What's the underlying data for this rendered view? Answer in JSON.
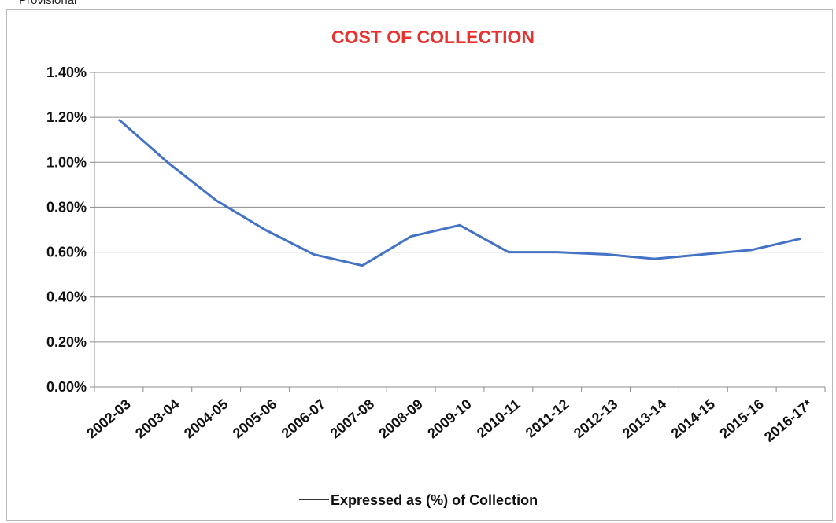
{
  "header_note": "Provisional",
  "chart_data": {
    "type": "line",
    "title": "COST OF COLLECTION",
    "title_color": "#e8322f",
    "xlabel": "",
    "ylabel": "",
    "categories": [
      "2002-03",
      "2003-04",
      "2004-05",
      "2005-06",
      "2006-07",
      "2007-08",
      "2008-09",
      "2009-10",
      "2010-11",
      "2011-12",
      "2012-13",
      "2013-14",
      "2014-15",
      "2015-16",
      "2016-17*"
    ],
    "series": [
      {
        "name": "Expressed as (%) of Collection",
        "color": "#4472c4",
        "values": [
          1.19,
          1.0,
          0.83,
          0.7,
          0.59,
          0.54,
          0.67,
          0.72,
          0.6,
          0.6,
          0.59,
          0.57,
          0.59,
          0.61,
          0.66
        ]
      }
    ],
    "ylim": [
      0,
      1.4
    ],
    "yticks": [
      "0.00%",
      "0.20%",
      "0.40%",
      "0.60%",
      "0.80%",
      "1.00%",
      "1.20%",
      "1.40%"
    ],
    "grid": true,
    "legend_placement": "bottom",
    "legend_line_color": "#333333"
  }
}
